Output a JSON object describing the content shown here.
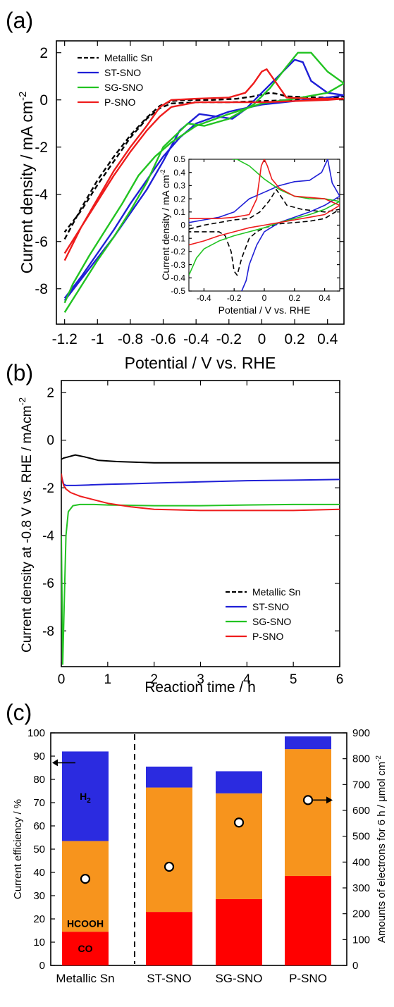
{
  "colors": {
    "Metallic Sn": "#000000",
    "ST-SNO": "#1f1fd6",
    "SG-SNO": "#22c322",
    "P-SNO": "#ee1c1c",
    "CO": "#ff0000",
    "HCOOH": "#f7941d",
    "H2": "#2b2be0"
  },
  "chart_data": [
    {
      "panel_label": "(a)",
      "type": "line",
      "xlabel": "Potential / V vs. RHE",
      "ylabel": "Current density / mA cm",
      "ylabel_sup": "-2",
      "xlim": [
        -1.25,
        0.5
      ],
      "ylim": [
        -9.5,
        2.5
      ],
      "xticks": [
        -1.2,
        -1,
        -0.8,
        -0.6,
        -0.4,
        -0.2,
        0,
        0.2,
        0.4
      ],
      "xtick_labels": [
        "-1.2",
        "-1",
        "-0.8",
        "-0.6",
        "-0.4",
        "-0.2",
        "0",
        "0.2",
        "0.4"
      ],
      "yticks": [
        -8,
        -6,
        -4,
        -2,
        0,
        2
      ],
      "ytick_labels": [
        "-8",
        "-6",
        "-4",
        "-2",
        "0",
        "2"
      ],
      "legend": [
        "Metallic Sn",
        "ST-SNO",
        "SG-SNO",
        "P-SNO"
      ],
      "legend_position": "top-left",
      "series": [
        {
          "name": "Metallic Sn",
          "dash": true,
          "x": [
            -1.2,
            -1.1,
            -1.0,
            -0.9,
            -0.8,
            -0.7,
            -0.62,
            -0.55,
            -0.45,
            -0.3,
            -0.15,
            -0.05,
            0.05,
            0.1,
            0.15,
            0.25,
            0.4,
            0.5,
            0.4,
            0.2,
            0.0,
            -0.2,
            -0.4,
            -0.55,
            -0.62,
            -0.7,
            -0.8,
            -0.9,
            -1.0,
            -1.1,
            -1.2
          ],
          "y": [
            -5.9,
            -4.6,
            -3.4,
            -2.4,
            -1.5,
            -0.75,
            -0.25,
            -0.05,
            0.0,
            0.0,
            0.05,
            0.15,
            0.3,
            0.25,
            0.15,
            0.12,
            0.1,
            0.15,
            0.05,
            0.0,
            -0.05,
            -0.1,
            -0.1,
            -0.15,
            -0.35,
            -0.8,
            -1.6,
            -2.6,
            -3.6,
            -4.7,
            -5.6
          ]
        },
        {
          "name": "ST-SNO",
          "x": [
            -1.2,
            -1.1,
            -1.0,
            -0.9,
            -0.8,
            -0.7,
            -0.6,
            -0.5,
            -0.38,
            -0.28,
            -0.18,
            -0.1,
            0.0,
            0.1,
            0.2,
            0.25,
            0.3,
            0.4,
            0.5,
            0.4,
            0.2,
            0.0,
            -0.2,
            -0.4,
            -0.5,
            -0.6,
            -0.7,
            -0.8,
            -0.9,
            -1.0,
            -1.1,
            -1.2
          ],
          "y": [
            -8.5,
            -7.6,
            -6.7,
            -5.8,
            -4.8,
            -3.8,
            -2.6,
            -1.3,
            -0.6,
            -0.7,
            -0.8,
            -0.4,
            0.3,
            1.0,
            1.7,
            1.6,
            0.8,
            0.3,
            0.2,
            0.1,
            -0.05,
            -0.2,
            -0.5,
            -1.0,
            -1.6,
            -2.4,
            -3.4,
            -4.4,
            -5.5,
            -6.5,
            -7.5,
            -8.4
          ]
        },
        {
          "name": "SG-SNO",
          "x": [
            -1.2,
            -1.1,
            -1.0,
            -0.9,
            -0.8,
            -0.7,
            -0.6,
            -0.45,
            -0.35,
            -0.2,
            -0.05,
            0.05,
            0.15,
            0.22,
            0.3,
            0.4,
            0.5,
            0.4,
            0.2,
            0.0,
            -0.2,
            -0.4,
            -0.55,
            -0.65,
            -0.75,
            -0.85,
            -0.95,
            -1.05,
            -1.15,
            -1.2
          ],
          "y": [
            -9.0,
            -7.9,
            -6.8,
            -5.8,
            -4.7,
            -3.5,
            -2.0,
            -1.0,
            -1.1,
            -0.8,
            -0.2,
            0.5,
            1.4,
            2.0,
            2.0,
            1.2,
            0.7,
            0.3,
            0.05,
            -0.15,
            -0.6,
            -1.1,
            -1.8,
            -2.4,
            -3.2,
            -4.4,
            -5.5,
            -6.6,
            -7.8,
            -8.6
          ]
        },
        {
          "name": "P-SNO",
          "x": [
            -1.2,
            -1.1,
            -1.0,
            -0.9,
            -0.8,
            -0.7,
            -0.62,
            -0.55,
            -0.4,
            -0.2,
            -0.1,
            -0.05,
            0.0,
            0.03,
            0.07,
            0.15,
            0.3,
            0.5,
            0.4,
            0.2,
            0.0,
            -0.2,
            -0.4,
            -0.55,
            -0.62,
            -0.7,
            -0.8,
            -0.9,
            -1.0,
            -1.1,
            -1.2
          ],
          "y": [
            -6.8,
            -5.4,
            -4.2,
            -3.0,
            -2.0,
            -1.1,
            -0.3,
            0.0,
            0.05,
            0.1,
            0.3,
            0.7,
            1.2,
            1.3,
            0.9,
            0.1,
            0.05,
            0.05,
            0.0,
            -0.05,
            -0.1,
            -0.1,
            -0.1,
            -0.3,
            -0.7,
            -1.3,
            -2.2,
            -3.2,
            -4.3,
            -5.4,
            -6.5
          ]
        }
      ]
    },
    {
      "panel_label": "inset",
      "type": "line",
      "xlabel": "Potential / V vs. RHE",
      "ylabel": "Current density / mA cm",
      "ylabel_sup": "-2",
      "xlim": [
        -0.5,
        0.5
      ],
      "ylim": [
        -0.5,
        0.5
      ],
      "xticks": [
        -0.4,
        -0.2,
        0,
        0.2,
        0.4
      ],
      "xtick_labels": [
        "-0.4",
        "-0.2",
        "0",
        "0.2",
        "0.4"
      ],
      "yticks": [
        -0.5,
        -0.4,
        -0.3,
        -0.2,
        -0.1,
        0,
        0.1,
        0.2,
        0.3,
        0.4,
        0.5
      ],
      "ytick_labels": [
        "-0.5",
        "-0.4",
        "-0.3",
        "-0.2",
        "-0.1",
        "0",
        "0.1",
        "0.2",
        "0.3",
        "0.4",
        "0.5"
      ],
      "series": [
        {
          "name": "Metallic Sn",
          "dash": true,
          "x": [
            -0.5,
            -0.4,
            -0.3,
            -0.2,
            -0.1,
            -0.03,
            0.03,
            0.08,
            0.15,
            0.25,
            0.4,
            0.5,
            0.4,
            0.3,
            0.2,
            0.1,
            0.0,
            -0.05,
            -0.1,
            -0.15,
            -0.18,
            -0.2,
            -0.22,
            -0.26,
            -0.3,
            -0.4,
            -0.5
          ],
          "y": [
            -0.03,
            0.0,
            0.02,
            0.04,
            0.05,
            0.1,
            0.18,
            0.27,
            0.15,
            0.12,
            0.1,
            0.12,
            0.05,
            0.03,
            0.02,
            0.01,
            -0.02,
            -0.05,
            -0.1,
            -0.25,
            -0.38,
            -0.35,
            -0.2,
            -0.08,
            -0.05,
            -0.05,
            -0.05
          ]
        },
        {
          "name": "ST-SNO",
          "x": [
            -0.5,
            -0.4,
            -0.3,
            -0.2,
            -0.1,
            0.0,
            0.1,
            0.2,
            0.3,
            0.38,
            0.42,
            0.45,
            0.5,
            0.4,
            0.3,
            0.2,
            0.1,
            0.0,
            -0.05,
            -0.1,
            -0.12,
            -0.15
          ],
          "y": [
            0.02,
            0.04,
            0.06,
            0.1,
            0.2,
            0.25,
            0.3,
            0.33,
            0.34,
            0.4,
            0.5,
            0.32,
            0.22,
            0.15,
            0.1,
            0.06,
            0.02,
            -0.05,
            -0.15,
            -0.3,
            -0.42,
            -0.5
          ]
        },
        {
          "name": "SG-SNO",
          "x": [
            -0.5,
            -0.45,
            -0.4,
            -0.3,
            -0.2,
            -0.1,
            0.0,
            0.1,
            0.2,
            0.3,
            0.4,
            0.5,
            0.4,
            0.3,
            0.2,
            0.1,
            0.0,
            -0.1,
            -0.15,
            -0.18,
            -0.2,
            -0.21
          ],
          "y": [
            -0.38,
            -0.25,
            -0.18,
            -0.12,
            -0.08,
            -0.05,
            -0.02,
            0.02,
            0.05,
            0.08,
            0.12,
            0.18,
            0.2,
            0.2,
            0.22,
            0.27,
            0.35,
            0.45,
            0.48,
            0.5,
            0.5,
            0.5
          ]
        },
        {
          "name": "P-SNO",
          "x": [
            -0.5,
            -0.4,
            -0.3,
            -0.2,
            -0.1,
            0.0,
            0.1,
            0.2,
            0.3,
            0.4,
            0.5,
            0.4,
            0.3,
            0.2,
            0.1,
            0.05,
            0.02,
            0.0,
            -0.02,
            -0.05,
            -0.1,
            -0.2,
            -0.3,
            -0.4,
            -0.5
          ],
          "y": [
            -0.15,
            -0.12,
            -0.08,
            -0.05,
            -0.02,
            0.0,
            0.02,
            0.04,
            0.06,
            0.08,
            0.15,
            0.2,
            0.21,
            0.22,
            0.28,
            0.35,
            0.45,
            0.5,
            0.45,
            0.2,
            0.08,
            0.06,
            0.05,
            0.05,
            0.05
          ]
        }
      ]
    },
    {
      "panel_label": "(b)",
      "type": "line",
      "xlabel": "Reaction time / h",
      "ylabel": "Current density at -0.8 V vs. RHE / mAcm",
      "ylabel_sup": "-2",
      "xlim": [
        0,
        6
      ],
      "ylim": [
        -9.5,
        2.5
      ],
      "xticks": [
        0,
        1,
        2,
        3,
        4,
        5,
        6
      ],
      "xtick_labels": [
        "0",
        "1",
        "2",
        "3",
        "4",
        "5",
        "6"
      ],
      "yticks": [
        -8,
        -6,
        -4,
        -2,
        0,
        2
      ],
      "ytick_labels": [
        "-8",
        "-6",
        "-4",
        "-2",
        "0",
        "2"
      ],
      "legend": [
        "Metallic Sn",
        "ST-SNO",
        "SG-SNO",
        "P-SNO"
      ],
      "legend_position": "bottom-right",
      "series": [
        {
          "name": "Metallic Sn",
          "dash": false,
          "x": [
            0.0,
            0.05,
            0.15,
            0.3,
            0.5,
            0.8,
            1.2,
            2.0,
            3.0,
            4.0,
            5.0,
            6.0
          ],
          "y": [
            -0.8,
            -0.75,
            -0.7,
            -0.62,
            -0.7,
            -0.85,
            -0.9,
            -0.95,
            -0.95,
            -0.95,
            -0.95,
            -0.95
          ]
        },
        {
          "name": "ST-SNO",
          "x": [
            0.0,
            0.05,
            0.1,
            0.3,
            0.6,
            1.0,
            1.5,
            2.0,
            3.0,
            4.0,
            5.0,
            6.0
          ],
          "y": [
            -1.5,
            -1.85,
            -1.9,
            -1.9,
            -1.88,
            -1.85,
            -1.83,
            -1.8,
            -1.75,
            -1.7,
            -1.68,
            -1.65
          ]
        },
        {
          "name": "SG-SNO",
          "x": [
            0.0,
            0.03,
            0.06,
            0.1,
            0.15,
            0.25,
            0.4,
            0.7,
            1.0,
            2.0,
            3.0,
            4.0,
            5.0,
            6.0
          ],
          "y": [
            -4.0,
            -9.4,
            -7.0,
            -4.0,
            -3.0,
            -2.75,
            -2.7,
            -2.7,
            -2.72,
            -2.75,
            -2.75,
            -2.72,
            -2.7,
            -2.7
          ]
        },
        {
          "name": "P-SNO",
          "x": [
            0.0,
            0.02,
            0.05,
            0.1,
            0.2,
            0.4,
            0.7,
            1.0,
            1.5,
            2.0,
            3.0,
            4.0,
            5.0,
            6.0
          ],
          "y": [
            -1.4,
            -1.7,
            -1.9,
            -2.05,
            -2.2,
            -2.35,
            -2.5,
            -2.65,
            -2.8,
            -2.9,
            -2.95,
            -2.95,
            -2.95,
            -2.9
          ]
        }
      ]
    },
    {
      "panel_label": "(c)",
      "type": "bar",
      "stacked": true,
      "categories": [
        "Metallic Sn",
        "ST-SNO",
        "SG-SNO",
        "P-SNO"
      ],
      "category_colors": [
        "#000000",
        "#1f1fd6",
        "#22c322",
        "#ee1c1c"
      ],
      "ylabel": "Current efficiency / %",
      "y2label": "Amounts of electrons for 6 h / μmol cm",
      "y2label_sup": "-2",
      "ylim": [
        0,
        100
      ],
      "y2lim": [
        0,
        900
      ],
      "yticks": [
        0,
        10,
        20,
        30,
        40,
        50,
        60,
        70,
        80,
        90,
        100
      ],
      "ytick_labels": [
        "0",
        "10",
        "20",
        "30",
        "40",
        "50",
        "60",
        "70",
        "80",
        "90",
        "100"
      ],
      "y2ticks": [
        0,
        100,
        200,
        300,
        400,
        500,
        600,
        700,
        800,
        900
      ],
      "y2tick_labels": [
        "0",
        "100",
        "200",
        "300",
        "400",
        "500",
        "600",
        "700",
        "800",
        "900"
      ],
      "series": [
        {
          "name": "CO",
          "values": [
            14.5,
            23,
            28.5,
            38.5
          ]
        },
        {
          "name": "HCOOH",
          "values": [
            39,
            53.5,
            45.5,
            54.5
          ]
        },
        {
          "name": "H2",
          "values": [
            38.5,
            9,
            9.5,
            5.5
          ]
        }
      ],
      "segment_labels": {
        "CO": "CO",
        "HCOOH": "HCOOH",
        "H2": "H",
        "H2_sub": "2"
      },
      "electrons": [
        335,
        382,
        553,
        640
      ]
    }
  ]
}
